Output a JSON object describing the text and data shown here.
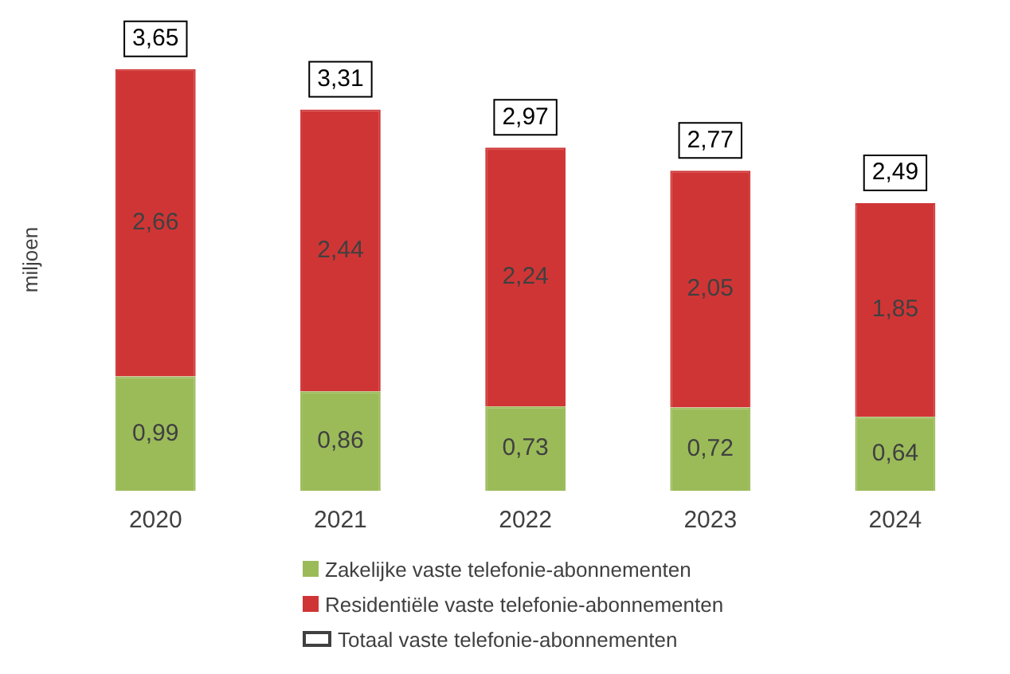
{
  "chart_data": {
    "type": "bar",
    "stacked": true,
    "relative": false,
    "ylabel": "miljoen",
    "categories": [
      "2020",
      "2021",
      "2022",
      "2023",
      "2024"
    ],
    "series": [
      {
        "name": "Zakelijke vaste telefonie-abonnementen",
        "color": "#9bbb59",
        "values": [
          0.99,
          0.86,
          0.73,
          0.72,
          0.64
        ],
        "value_labels": [
          "0,99",
          "0,86",
          "0,73",
          "0,72",
          "0,64"
        ]
      },
      {
        "name": "Residentiële vaste telefonie-abonnementen",
        "color": "#d03535",
        "values": [
          2.66,
          2.44,
          2.24,
          2.05,
          1.85
        ],
        "value_labels": [
          "2,66",
          "2,44",
          "2,24",
          "2,05",
          "1,85"
        ]
      }
    ],
    "totals": [
      "3,65",
      "3,31",
      "2,97",
      "2,77",
      "2,49"
    ],
    "annotations": [
      "Totaal vaste telefonie-abonnementen"
    ],
    "legend": "bottom"
  }
}
